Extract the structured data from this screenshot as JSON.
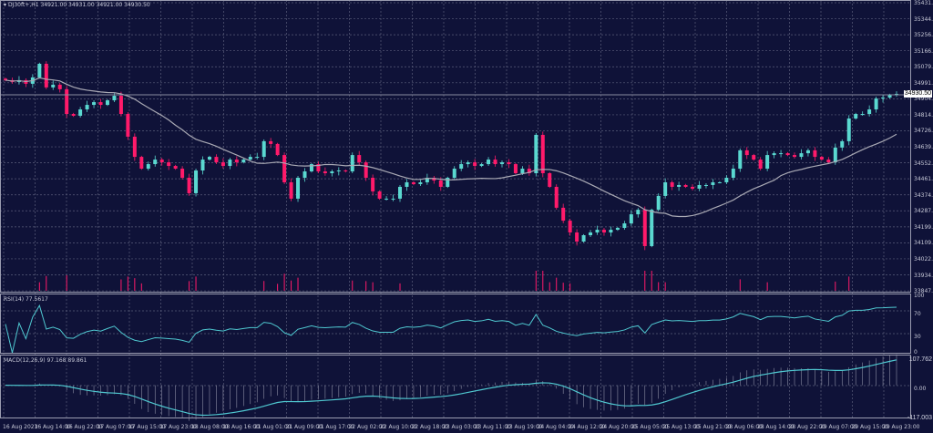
{
  "header": {
    "symbol": "DJ30ft+,H1",
    "ohlc": "34921.00 34931.00 34921.00 34930.50"
  },
  "current_price": "34930.50",
  "price_axis": [
    "35431.85",
    "35344.40",
    "35256.95",
    "35166.85",
    "35079.40",
    "34991.95",
    "34904.50",
    "34814.40",
    "34726.95",
    "34639.50",
    "34552.05",
    "34461.95",
    "34374.50",
    "34287.05",
    "34199.60",
    "34109.50",
    "34022.05",
    "33934.60",
    "33847.15"
  ],
  "time_axis": [
    "16 Aug 2023",
    "16 Aug 14:00",
    "16 Aug 22:00",
    "17 Aug 07:00",
    "17 Aug 15:00",
    "17 Aug 23:00",
    "18 Aug 08:00",
    "18 Aug 16:00",
    "21 Aug 01:00",
    "21 Aug 09:00",
    "21 Aug 17:00",
    "22 Aug 02:00",
    "22 Aug 10:00",
    "22 Aug 18:00",
    "23 Aug 03:00",
    "23 Aug 11:00",
    "23 Aug 19:00",
    "24 Aug 04:00",
    "24 Aug 12:00",
    "24 Aug 20:00",
    "25 Aug 05:00",
    "25 Aug 13:00",
    "25 Aug 21:00",
    "28 Aug 06:00",
    "28 Aug 14:00",
    "28 Aug 22:00",
    "29 Aug 07:00",
    "29 Aug 15:00",
    "29 Aug 23:00"
  ],
  "rsi": {
    "label": "RSI(14) 77.5617",
    "axis": [
      "100",
      "70",
      "30",
      "0"
    ]
  },
  "macd": {
    "label": "MACD(12,26,9) 97.168 89.861",
    "axis": [
      "107.762",
      "0.00",
      "-117.003"
    ]
  },
  "colors": {
    "background": "#0f1238",
    "bull": "#5ad8d0",
    "bear": "#ff1a6a",
    "ma": "#a9a9b4",
    "indicator": "#4fc8d0",
    "grid": "#5a5d7a"
  },
  "chart_data": {
    "type": "candlestick",
    "price_range": [
      33847.15,
      35431.85
    ],
    "closes": [
      35006,
      34996,
      35006,
      34986,
      35021,
      35096,
      34966,
      34981,
      34956,
      34820,
      34810,
      34845,
      34870,
      34885,
      34870,
      34895,
      34920,
      34820,
      34695,
      34584,
      34519,
      34544,
      34569,
      34554,
      34534,
      34519,
      34469,
      34384,
      34509,
      34569,
      34584,
      34554,
      34534,
      34569,
      34554,
      34569,
      34584,
      34584,
      34670,
      34655,
      34594,
      34444,
      34354,
      34469,
      34504,
      34544,
      34504,
      34494,
      34504,
      34509,
      34504,
      34594,
      34554,
      34469,
      34394,
      34354,
      34354,
      34354,
      34419,
      34444,
      34434,
      34444,
      34469,
      34454,
      34419,
      34469,
      34519,
      34544,
      34554,
      34534,
      34544,
      34569,
      34544,
      34554,
      34544,
      34494,
      34519,
      34494,
      34705,
      34494,
      34419,
      34304,
      34233,
      34168,
      34118,
      34153,
      34168,
      34183,
      34168,
      34183,
      34193,
      34218,
      34268,
      34293,
      34093,
      34293,
      34369,
      34444,
      34419,
      34429,
      34419,
      34409,
      34429,
      34429,
      34444,
      34444,
      34469,
      34519,
      34620,
      34594,
      34569,
      34519,
      34594,
      34604,
      34604,
      34594,
      34584,
      34604,
      34620,
      34584,
      34569,
      34554,
      34635,
      34670,
      34795,
      34820,
      34820,
      34845,
      34905,
      34910,
      34925,
      34930.5
    ]
  }
}
